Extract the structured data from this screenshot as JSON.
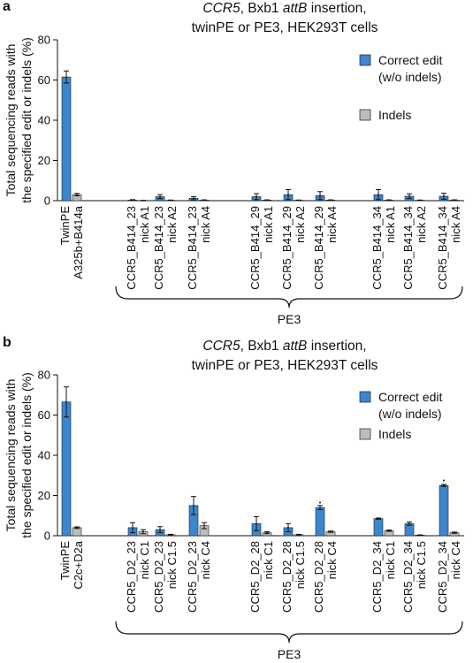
{
  "chart_data": [
    {
      "panel_label": "a",
      "type": "bar",
      "title_lines": [
        [
          {
            "t": "CCR5",
            "i": true
          },
          {
            "t": ", Bxb1 ",
            "i": false
          },
          {
            "t": "attB",
            "i": true
          },
          {
            "t": " insertion,",
            "i": false
          }
        ],
        [
          {
            "t": "twinPE or PE3, HEK293T cells",
            "i": false
          }
        ]
      ],
      "ylabel_lines": [
        "Total sequencing reads with",
        "the specified edit or indels (%)"
      ],
      "ylim": [
        0,
        80
      ],
      "yticks": [
        0,
        20,
        40,
        60,
        80
      ],
      "legend_position": "right",
      "series": [
        {
          "name_lines": [
            "Correct edit",
            "(w/o indels)"
          ],
          "color": "#3a87cf"
        },
        {
          "name_lines": [
            "Indels"
          ],
          "color": "#bdbdbd"
        }
      ],
      "groups": [
        {
          "label": "TwinPE|A325b+B414a",
          "values": [
            61.5,
            3.0
          ],
          "errors": [
            3.0,
            0.6
          ]
        },
        {
          "label": "CCR5_B414_23|nick A1",
          "values": [
            0.3,
            0.1
          ],
          "errors": [
            0.2,
            0.1
          ]
        },
        {
          "label": "CCR5_B414_23|nick A2",
          "values": [
            2.0,
            0.2
          ],
          "errors": [
            1.0,
            0.1
          ]
        },
        {
          "label": "CCR5_B414_23|nick A4",
          "values": [
            1.2,
            0.3
          ],
          "errors": [
            0.8,
            0.1
          ]
        },
        {
          "label": "CCR5_B414_29|nick A1",
          "values": [
            2.0,
            0.3
          ],
          "errors": [
            1.5,
            0.1
          ]
        },
        {
          "label": "CCR5_B414_29|nick A2",
          "values": [
            3.0,
            0.2
          ],
          "errors": [
            2.5,
            0.1
          ]
        },
        {
          "label": "CCR5_B414_29|nick A4",
          "values": [
            2.5,
            0.3
          ],
          "errors": [
            2.0,
            0.1
          ]
        },
        {
          "label": "CCR5_B414_34|nick A1",
          "values": [
            3.0,
            0.3
          ],
          "errors": [
            2.5,
            0.1
          ]
        },
        {
          "label": "CCR5_B414_34|nick A2",
          "values": [
            2.2,
            0.2
          ],
          "errors": [
            1.2,
            0.1
          ]
        },
        {
          "label": "CCR5_B414_34|nick A4",
          "values": [
            2.2,
            0.3
          ],
          "errors": [
            1.5,
            0.1
          ]
        }
      ],
      "bracket_label": "PE3"
    },
    {
      "panel_label": "b",
      "type": "bar",
      "title_lines": [
        [
          {
            "t": "CCR5",
            "i": true
          },
          {
            "t": ", Bxb1 ",
            "i": false
          },
          {
            "t": "attB",
            "i": true
          },
          {
            "t": " insertion,",
            "i": false
          }
        ],
        [
          {
            "t": "twinPE or PE3, HEK293T cells",
            "i": false
          }
        ]
      ],
      "ylabel_lines": [
        "Total sequencing reads with",
        "the specified edit or indels (%)"
      ],
      "ylim": [
        0,
        80
      ],
      "yticks": [
        0,
        20,
        40,
        60,
        80
      ],
      "legend_position": "right",
      "series": [
        {
          "name_lines": [
            "Correct edit",
            "(w/o indels)"
          ],
          "color": "#3a87cf"
        },
        {
          "name_lines": [
            "Indels"
          ],
          "color": "#bdbdbd"
        }
      ],
      "groups": [
        {
          "label": "TwinPE|C2c+D2a",
          "values": [
            66.5,
            4.0
          ],
          "errors": [
            7.5,
            0.4
          ]
        },
        {
          "label": "CCR5_D2_23|nick C1",
          "values": [
            4.0,
            2.0
          ],
          "errors": [
            2.5,
            1.0
          ]
        },
        {
          "label": "CCR5_D2_23|nick C1.5",
          "values": [
            3.0,
            0.5
          ],
          "errors": [
            1.5,
            0.2
          ]
        },
        {
          "label": "CCR5_D2_23|nick C4",
          "values": [
            15.0,
            5.0
          ],
          "errors": [
            4.5,
            1.5
          ]
        },
        {
          "label": "CCR5_D2_28|nick C1",
          "values": [
            6.0,
            1.5
          ],
          "errors": [
            3.5,
            0.5
          ]
        },
        {
          "label": "CCR5_D2_28|nick C1.5",
          "values": [
            4.0,
            0.5
          ],
          "errors": [
            2.0,
            0.2
          ]
        },
        {
          "label": "CCR5_D2_28|nick C4",
          "values": [
            14.0,
            2.0
          ],
          "errors": [
            1.0,
            0.3
          ]
        },
        {
          "label": "CCR5_D2_34|nick C1",
          "values": [
            8.5,
            2.5
          ],
          "errors": [
            0.3,
            0.3
          ]
        },
        {
          "label": "CCR5_D2_34|nick C1.5",
          "values": [
            6.0,
            0.3
          ],
          "errors": [
            0.8,
            0.1
          ]
        },
        {
          "label": "CCR5_D2_34|nick C4",
          "values": [
            25.0,
            1.5
          ],
          "errors": [
            0.5,
            0.3
          ]
        }
      ],
      "bracket_label": "PE3"
    }
  ]
}
